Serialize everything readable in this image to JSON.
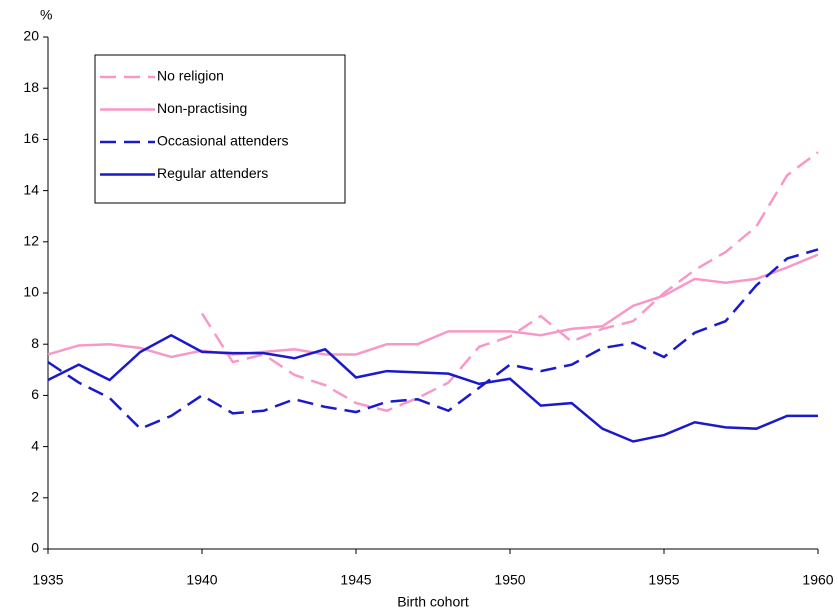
{
  "chart_data": {
    "type": "line",
    "y_label": "%",
    "x_label": "Birth cohort",
    "x": [
      1935,
      1936,
      1937,
      1938,
      1939,
      1940,
      1941,
      1942,
      1943,
      1944,
      1945,
      1946,
      1947,
      1948,
      1949,
      1950,
      1951,
      1952,
      1953,
      1954,
      1955,
      1956,
      1957,
      1958,
      1959,
      1960
    ],
    "xlim": [
      1935,
      1960
    ],
    "xticks": [
      1935,
      1940,
      1945,
      1950,
      1955,
      1960
    ],
    "ylim": [
      0,
      20
    ],
    "yticks": [
      0,
      2,
      4,
      6,
      8,
      10,
      12,
      14,
      16,
      18,
      20
    ],
    "legend": "upper left",
    "series": [
      {
        "name": "No religion",
        "color": "#f799c8",
        "dashed": true,
        "values": [
          null,
          null,
          null,
          null,
          null,
          9.2,
          7.3,
          7.6,
          6.8,
          6.4,
          5.7,
          5.4,
          5.9,
          6.5,
          7.9,
          8.3,
          9.1,
          8.1,
          8.6,
          8.9,
          10.0,
          10.9,
          11.6,
          12.6,
          14.6,
          15.5
        ]
      },
      {
        "name": "Non-practising",
        "color": "#f799c8",
        "dashed": false,
        "values": [
          7.6,
          7.95,
          8.0,
          7.85,
          7.5,
          7.75,
          7.6,
          7.7,
          7.8,
          7.6,
          7.6,
          8.0,
          8.0,
          8.5,
          8.5,
          8.5,
          8.35,
          8.6,
          8.7,
          9.5,
          9.9,
          10.55,
          10.4,
          10.55,
          11.0,
          11.5
        ]
      },
      {
        "name": "Occasional attenders",
        "color": "#1a1acc",
        "dashed": true,
        "values": [
          7.3,
          6.5,
          5.9,
          4.7,
          5.2,
          6.0,
          5.3,
          5.4,
          5.85,
          5.55,
          5.35,
          5.75,
          5.85,
          5.4,
          6.3,
          7.2,
          6.95,
          7.2,
          7.85,
          8.05,
          7.5,
          8.45,
          8.9,
          10.3,
          11.35,
          11.7
        ]
      },
      {
        "name": "Regular attenders",
        "color": "#1a1acc",
        "dashed": false,
        "values": [
          6.6,
          7.2,
          6.6,
          7.7,
          8.35,
          7.7,
          7.65,
          7.65,
          7.45,
          7.8,
          6.7,
          6.95,
          6.9,
          6.85,
          6.45,
          6.65,
          5.6,
          5.7,
          4.7,
          4.2,
          4.45,
          4.95,
          4.75,
          4.7,
          5.2,
          5.2
        ]
      }
    ]
  }
}
